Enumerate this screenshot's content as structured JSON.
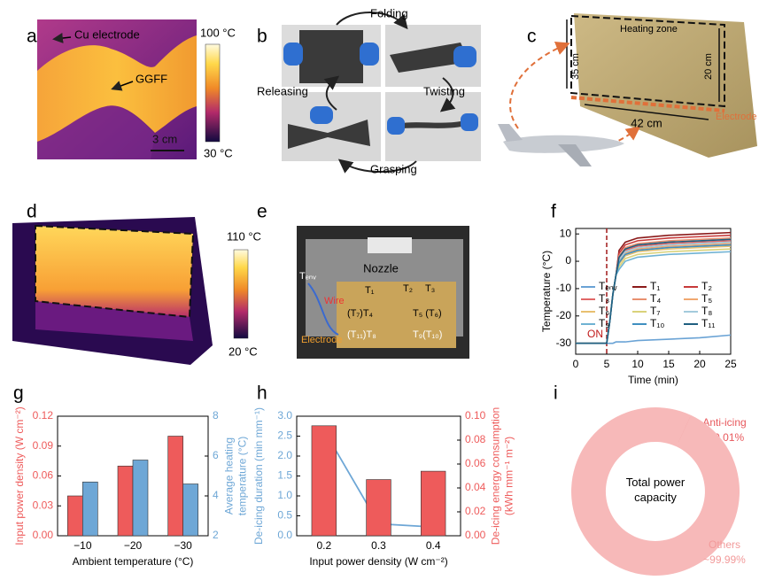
{
  "panels": [
    "a",
    "b",
    "c",
    "d",
    "e",
    "f",
    "g",
    "h",
    "i"
  ],
  "images": {
    "a": {
      "labels": [
        "Cu electrode",
        "GGFF",
        "3 cm"
      ],
      "colorbar": [
        "100 °C",
        "30 °C"
      ]
    },
    "b": {
      "labels": [
        "Folding",
        "Twisting",
        "Grasping",
        "Releasing"
      ]
    },
    "c": {
      "labels": [
        "Heating zone",
        "35 cm",
        "20 cm",
        "42 cm",
        "Electrode"
      ]
    },
    "d": {
      "colorbar": [
        "110 °C",
        "20 °C"
      ]
    },
    "e": {
      "labels": [
        "Nozzle",
        "Tₑₙᵥ",
        "T₁",
        "T₂",
        "T₃",
        "(T₇)T₄",
        "T₅ (T₆)",
        "Wire",
        "Electrode",
        "(T₁₁)T₈",
        "T₉(T₁₀)"
      ]
    }
  },
  "chart_data": [
    {
      "type": "line",
      "xlabel": "Time (min)",
      "ylabel": "Temperature (°C)",
      "x": [
        0,
        3,
        5,
        5.5,
        6,
        6.5,
        7,
        8,
        10,
        15,
        20,
        25
      ],
      "xlim": [
        0,
        25
      ],
      "xticks": [
        0,
        5,
        10,
        15,
        20,
        25
      ],
      "ylim": [
        -34,
        12
      ],
      "yticks": [
        -30,
        -20,
        -10,
        0,
        10
      ],
      "vline": 5,
      "annotation": "ON",
      "legend": "center",
      "series": [
        {
          "name": "Tₑₙᵥ",
          "color": "#6aa3d5",
          "values": [
            -30,
            -30,
            -30,
            -30,
            -30,
            -29.5,
            -29.5,
            -29.5,
            -29,
            -28.5,
            -28,
            -27
          ]
        },
        {
          "name": "T₁",
          "color": "#8b1a1a",
          "values": [
            -30,
            -30,
            -30,
            -22,
            -12,
            -5,
            4,
            7,
            8.5,
            9.5,
            10,
            10.5
          ]
        },
        {
          "name": "T₂",
          "color": "#c73a3a",
          "values": [
            -30,
            -30,
            -30,
            -22,
            -12,
            -5,
            3,
            6,
            7.5,
            8.5,
            9,
            9.5
          ]
        },
        {
          "name": "T₃",
          "color": "#e06767",
          "values": [
            -30,
            -30,
            -30,
            -22,
            -12,
            -5,
            1,
            4,
            5.5,
            6.5,
            7,
            7.5
          ]
        },
        {
          "name": "T₄",
          "color": "#e8906f",
          "values": [
            -30,
            -30,
            -30,
            -22,
            -12,
            -5,
            2,
            5,
            6.5,
            7.5,
            8,
            8.5
          ]
        },
        {
          "name": "T₅",
          "color": "#f0a870",
          "values": [
            -30,
            -30,
            -30,
            -22,
            -12,
            -5,
            0,
            3,
            4.5,
            5.5,
            6,
            6.5
          ]
        },
        {
          "name": "T₆",
          "color": "#e8c070",
          "values": [
            -30,
            -30,
            -30,
            -22,
            -12,
            -5,
            -1,
            2,
            3.5,
            4.5,
            5,
            5.5
          ]
        },
        {
          "name": "T₇",
          "color": "#d9d27a",
          "values": [
            -30,
            -30,
            -30,
            -22,
            -12,
            -5,
            -2,
            1,
            2.5,
            3.5,
            4,
            4.5
          ]
        },
        {
          "name": "T₈",
          "color": "#a3cbdc",
          "values": [
            -30,
            -30,
            -30,
            -22,
            -12,
            -5,
            0.5,
            3.5,
            5,
            6,
            6.5,
            7
          ]
        },
        {
          "name": "T₉",
          "color": "#6fb2d3",
          "values": [
            -30,
            -30,
            -30,
            -22,
            -12,
            -5,
            -3,
            0,
            1.5,
            2.5,
            3,
            3.5
          ]
        },
        {
          "name": "T₁₀",
          "color": "#3f8fc0",
          "values": [
            -30,
            -30,
            -30,
            -22,
            -12,
            -5,
            -0.5,
            2.5,
            4,
            5,
            5.5,
            6
          ]
        },
        {
          "name": "T₁₁",
          "color": "#1f5f80",
          "values": [
            -30,
            -30,
            -30,
            -22,
            -12,
            -5,
            1.5,
            4.5,
            6,
            7,
            7.5,
            8
          ]
        }
      ]
    },
    {
      "type": "bar",
      "xlabel": "Ambient temperature (°C)",
      "ylabel": "Input power density (W cm⁻²)",
      "y2label": [
        "Average heating",
        "temperature (°C)"
      ],
      "categories": [
        "−10",
        "−20",
        "−30"
      ],
      "ylim": [
        0,
        0.12
      ],
      "yticks": [
        {
          "value": 0,
          "label": "0.00"
        },
        0.03,
        0.06,
        0.09,
        0.12
      ],
      "y2lim": [
        2,
        8
      ],
      "y2ticks": [
        2,
        4,
        6,
        8
      ],
      "series": [
        {
          "color": "#ee5b5b",
          "values": [
            0.04,
            0.07,
            0.1
          ]
        },
        {
          "color": "#6ea7d6",
          "axis": "y2",
          "values": [
            4.7,
            5.8,
            4.6
          ]
        }
      ]
    },
    {
      "type": "bar",
      "xlabel": "Input power density (W cm⁻²)",
      "ylabel": "De-icing duration (min mm⁻¹)",
      "y2label": [
        "De-icing energy consumption",
        "(kWh mm⁻¹ m⁻²)"
      ],
      "categories": [
        "0.2",
        "0.3",
        "0.4"
      ],
      "ylim": [
        0,
        3
      ],
      "yticks": [
        {
          "value": 0,
          "label": "0.0"
        },
        0.5,
        {
          "value": 1,
          "label": "1.0"
        },
        1.5,
        {
          "value": 2,
          "label": "2.0"
        },
        2.5,
        {
          "value": 3,
          "label": "3.0"
        }
      ],
      "y2lim": [
        0,
        0.1
      ],
      "y2ticks": [
        {
          "value": 0,
          "label": "0.00"
        },
        0.02,
        0.04,
        0.06,
        0.08,
        {
          "value": 0.1,
          "label": "0.10"
        }
      ],
      "series": [
        {
          "type": "line",
          "color": "#6ea7d6",
          "values": [
            2.65,
            0.3,
            0.22
          ]
        },
        {
          "color": "#ee5b5b",
          "axis": "y2",
          "values": [
            0.092,
            0.047,
            0.054
          ]
        }
      ]
    },
    {
      "type": "pie",
      "center_label": "Total power capacity",
      "categories": [
        "Anti-icing",
        "Others"
      ],
      "values": [
        0.01,
        99.99
      ],
      "value_labels": [
        "~ 0.01%",
        "~99.99%"
      ],
      "colors": [
        "#e8595d",
        "#f7b9b9"
      ]
    }
  ]
}
